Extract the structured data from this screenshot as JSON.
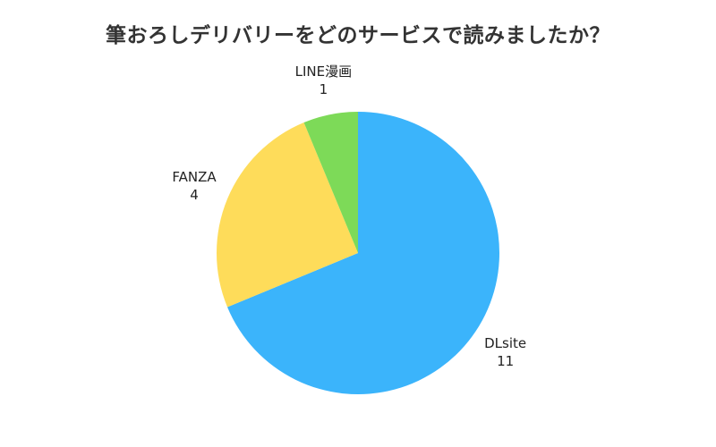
{
  "chart_data": {
    "type": "pie",
    "title": "筆おろしデリバリーをどのサービスで読みましたか？",
    "categories": [
      "DLsite",
      "FANZA",
      "LINE漫画"
    ],
    "values": [
      11,
      4,
      1
    ],
    "colors": [
      "#3BB4FB",
      "#FEDC5A",
      "#7DDA58"
    ],
    "start": "top",
    "direction": "clockwise"
  }
}
